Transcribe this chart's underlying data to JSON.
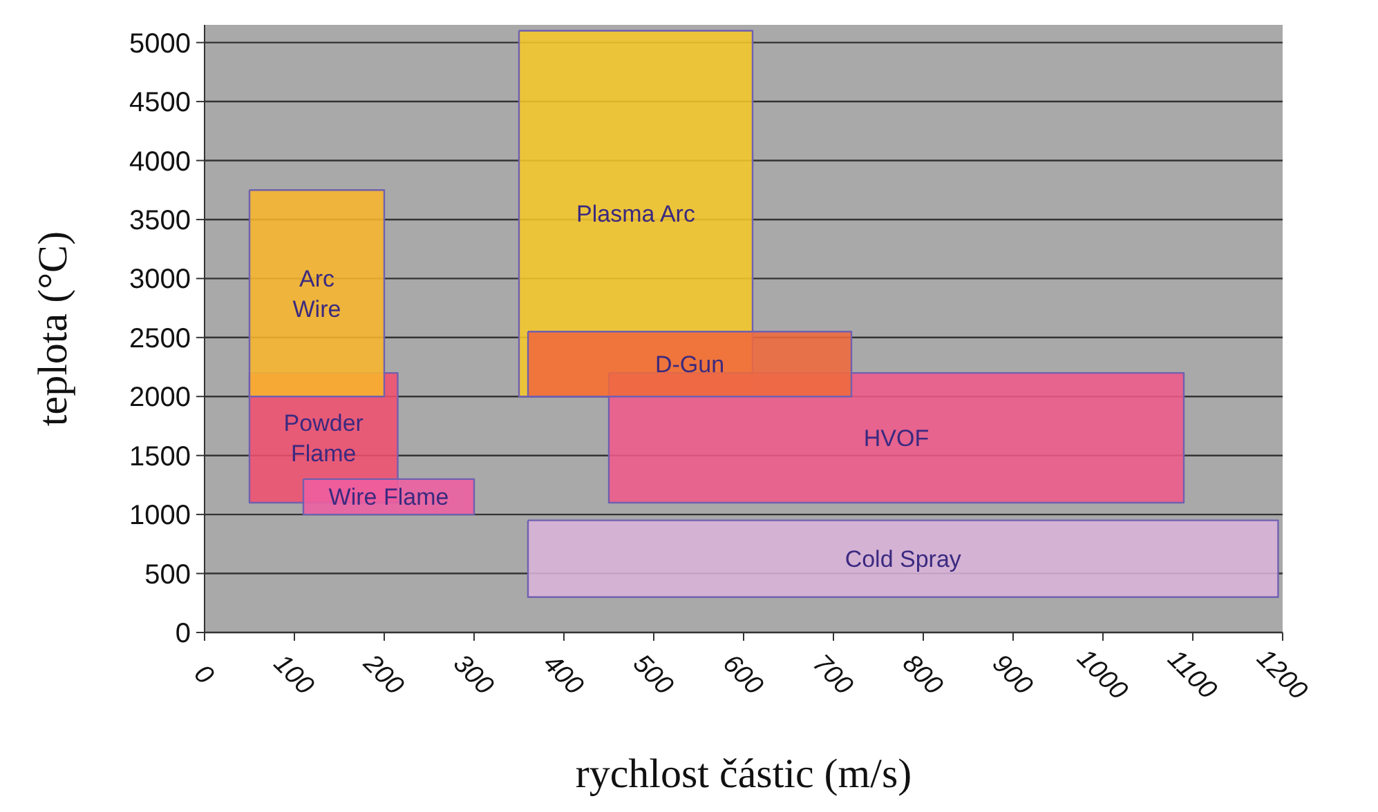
{
  "chart_data": {
    "type": "area",
    "xlabel": "rychlost částic (m/s)",
    "ylabel": "teplota (°C)",
    "xlim": [
      0,
      1200
    ],
    "xticks": [
      0,
      100,
      200,
      300,
      400,
      500,
      600,
      700,
      800,
      900,
      1000,
      1100,
      1200
    ],
    "ylim": [
      0,
      5150
    ],
    "yticks": [
      0,
      500,
      1000,
      1500,
      2000,
      2500,
      3000,
      3500,
      4000,
      4500,
      5000
    ],
    "grid": "y",
    "marker": "none",
    "series": [
      {
        "name": "Powder Flame",
        "color": "#f0506e",
        "x": [
          50,
          215,
          215,
          50,
          50
        ],
        "values": [
          2200,
          2200,
          1100,
          1100,
          2200
        ]
      },
      {
        "name": "Arc Wire",
        "color": "#f7b52c",
        "x": [
          50,
          200,
          200,
          50,
          50
        ],
        "values": [
          3750,
          3750,
          2000,
          2000,
          3750
        ]
      },
      {
        "name": "Wire Flame",
        "color": "#ee5fa0",
        "x": [
          110,
          300,
          300,
          110,
          110
        ],
        "values": [
          1300,
          1300,
          1000,
          1000,
          1300
        ]
      },
      {
        "name": "Plasma Arc",
        "color": "#f5c72a",
        "x": [
          350,
          610,
          610,
          350,
          350
        ],
        "values": [
          5100,
          5100,
          2000,
          2000,
          5100
        ]
      },
      {
        "name": "HVOF",
        "color": "#ee5a8a",
        "x": [
          450,
          1090,
          1090,
          450,
          450
        ],
        "values": [
          2200,
          2200,
          1100,
          1100,
          2200
        ]
      },
      {
        "name": "D-Gun",
        "color": "#ef6a3c",
        "x": [
          360,
          720,
          720,
          360,
          360
        ],
        "values": [
          2550,
          2550,
          2000,
          2000,
          2550
        ]
      },
      {
        "name": "Cold Spray",
        "color": "#d9b3d9",
        "x": [
          360,
          1195,
          1195,
          360,
          360
        ],
        "values": [
          950,
          950,
          300,
          300,
          950
        ]
      }
    ]
  }
}
